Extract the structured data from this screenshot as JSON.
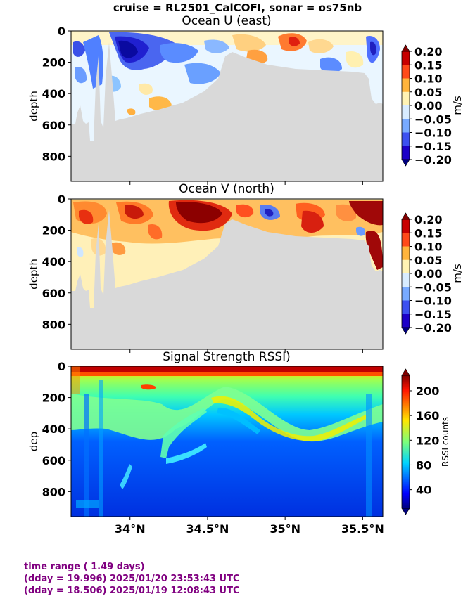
{
  "suptitle": "cruise = RL2501_CalCOFI,  sonar = os75nb",
  "footer": {
    "line1": "time range ( 1.49 days)",
    "line2": "(dday = 19.996) 2025/01/20 23:53:43 UTC",
    "line3": "(dday = 18.506) 2025/01/19 12:08:43 UTC"
  },
  "colors": {
    "no_data": "#d9d9d9",
    "footer_text": "#800080"
  },
  "chart_data": [
    {
      "type": "heatmap",
      "title": "Ocean U (east)",
      "ylabel": "depth",
      "yticks": [
        0,
        200,
        400,
        600,
        800
      ],
      "ylim": [
        960,
        0
      ],
      "xlim": [
        33.62,
        35.63
      ],
      "xticks": [
        34.0,
        34.5,
        35.0,
        35.5
      ],
      "xtick_labels_shown": false,
      "colorbar": {
        "label": "m/s",
        "colormap": "jet",
        "discrete_levels": 8,
        "ticks": [
          0.2,
          0.15,
          0.1,
          0.05,
          0.0,
          -0.05,
          -0.1,
          -0.15,
          -0.2
        ],
        "tick_labels": [
          "0.20",
          "0.15",
          "0.10",
          "0.05",
          "0.00",
          "−0.05",
          "−0.10",
          "−0.15",
          "−0.20"
        ],
        "extend": "both"
      }
    },
    {
      "type": "heatmap",
      "title": "Ocean V (north)",
      "ylabel": "depth",
      "yticks": [
        0,
        200,
        400,
        600,
        800
      ],
      "ylim": [
        960,
        0
      ],
      "xlim": [
        33.62,
        35.63
      ],
      "xticks": [
        34.0,
        34.5,
        35.0,
        35.5
      ],
      "xtick_labels_shown": false,
      "colorbar": {
        "label": "m/s",
        "colormap": "jet",
        "discrete_levels": 8,
        "ticks": [
          0.2,
          0.15,
          0.1,
          0.05,
          0.0,
          -0.05,
          -0.1,
          -0.15,
          -0.2
        ],
        "tick_labels": [
          "0.20",
          "0.15",
          "0.10",
          "0.05",
          "0.00",
          "−0.05",
          "−0.10",
          "−0.15",
          "−0.20"
        ],
        "extend": "both"
      }
    },
    {
      "type": "heatmap",
      "title": "Signal Strength RSSI)",
      "ylabel": "dep",
      "yticks": [
        0,
        200,
        400,
        600,
        800
      ],
      "ylim": [
        960,
        0
      ],
      "xlim": [
        33.62,
        35.63
      ],
      "xticks": [
        34.0,
        34.5,
        35.0,
        35.5
      ],
      "xtick_labels": [
        "34°N",
        "34.5°N",
        "35°N",
        "35.5°N"
      ],
      "xtick_labels_shown": true,
      "colorbar": {
        "label": "RSSI counts",
        "colormap": "jet",
        "range": [
          10,
          225
        ],
        "ticks": [
          200,
          160,
          120,
          80,
          40
        ],
        "tick_labels": [
          "200",
          "160",
          "120",
          "80",
          "40"
        ],
        "extend": "both"
      }
    }
  ]
}
